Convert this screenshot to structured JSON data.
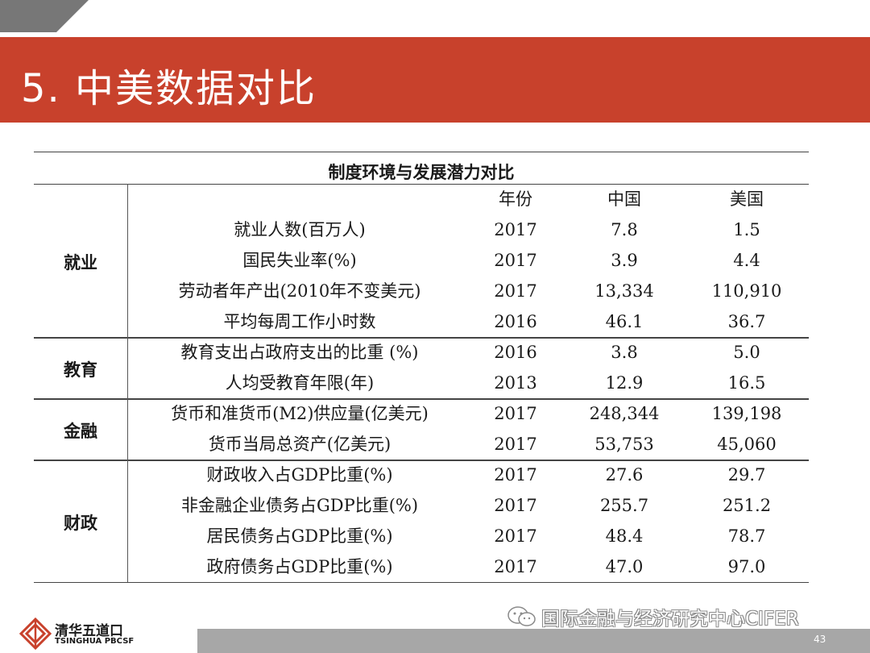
{
  "slide": {
    "title": "5. 中美数据对比",
    "page_number": "43"
  },
  "table": {
    "caption": "制度环境与发展潜力对比",
    "headers": {
      "year": "年份",
      "china": "中国",
      "usa": "美国"
    },
    "groups": [
      {
        "category": "就业",
        "rows": [
          {
            "indicator": "就业人数(百万人)",
            "year": "2017",
            "china": "7.8",
            "usa": "1.5"
          },
          {
            "indicator": "国民失业率(%)",
            "year": "2017",
            "china": "3.9",
            "usa": "4.4"
          },
          {
            "indicator": "劳动者年产出(2010年不变美元)",
            "year": "2017",
            "china": "13,334",
            "usa": "110,910"
          },
          {
            "indicator": "平均每周工作小时数",
            "year": "2016",
            "china": "46.1",
            "usa": "36.7"
          }
        ]
      },
      {
        "category": "教育",
        "rows": [
          {
            "indicator": "教育支出占政府支出的比重 (%)",
            "year": "2016",
            "china": "3.8",
            "usa": "5.0"
          },
          {
            "indicator": "人均受教育年限(年)",
            "year": "2013",
            "china": "12.9",
            "usa": "16.5"
          }
        ]
      },
      {
        "category": "金融",
        "rows": [
          {
            "indicator": "货币和准货币(M2)供应量(亿美元)",
            "year": "2017",
            "china": "248,344",
            "usa": "139,198"
          },
          {
            "indicator": "货币当局总资产(亿美元)",
            "year": "2017",
            "china": "53,753",
            "usa": "45,060"
          }
        ]
      },
      {
        "category": "财政",
        "rows": [
          {
            "indicator": "财政收入占GDP比重(%)",
            "year": "2017",
            "china": "27.6",
            "usa": "29.7"
          },
          {
            "indicator": "非金融企业债务占GDP比重(%)",
            "year": "2017",
            "china": "255.7",
            "usa": "251.2"
          },
          {
            "indicator": "居民债务占GDP比重(%)",
            "year": "2017",
            "china": "48.4",
            "usa": "78.7"
          },
          {
            "indicator": "政府债务占GDP比重(%)",
            "year": "2017",
            "china": "47.0",
            "usa": "97.0"
          }
        ]
      }
    ]
  },
  "footer": {
    "logo_cn": "清华五道口",
    "logo_en": "TSINGHUA PBCSF",
    "watermark": "国际金融与经济研究中心CIFER"
  },
  "colors": {
    "accent": "#c8412c",
    "footer_gray": "#a7a7a7"
  },
  "icons": {
    "logo": "tsinghua-pbcsf-logo",
    "watermark": "wechat-icon"
  }
}
